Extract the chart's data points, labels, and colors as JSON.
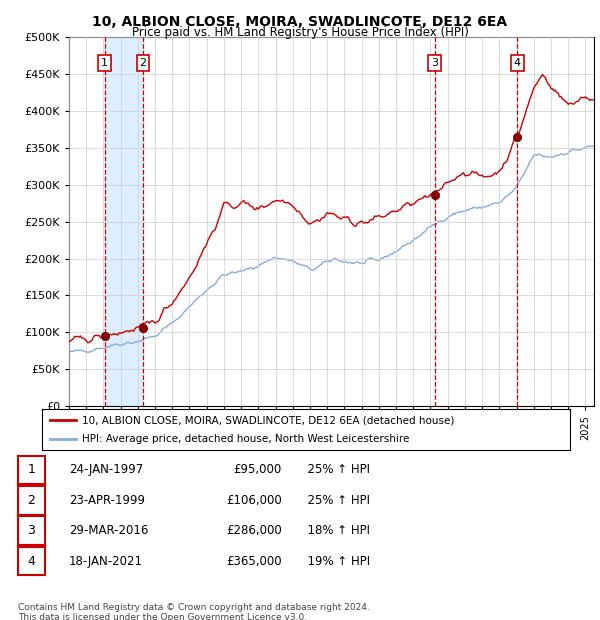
{
  "title": "10, ALBION CLOSE, MOIRA, SWADLINCOTE, DE12 6EA",
  "subtitle": "Price paid vs. HM Land Registry's House Price Index (HPI)",
  "legend_property": "10, ALBION CLOSE, MOIRA, SWADLINCOTE, DE12 6EA (detached house)",
  "legend_hpi": "HPI: Average price, detached house, North West Leicestershire",
  "footer": "Contains HM Land Registry data © Crown copyright and database right 2024.\nThis data is licensed under the Open Government Licence v3.0.",
  "purchases": [
    {
      "num": 1,
      "date": "24-JAN-1997",
      "price": 95000,
      "hpi_pct": 25,
      "hpi_dir": "↑"
    },
    {
      "num": 2,
      "date": "23-APR-1999",
      "price": 106000,
      "hpi_pct": 25,
      "hpi_dir": "↑"
    },
    {
      "num": 3,
      "date": "29-MAR-2016",
      "price": 286000,
      "hpi_pct": 18,
      "hpi_dir": "↑"
    },
    {
      "num": 4,
      "date": "18-JAN-2021",
      "price": 365000,
      "hpi_pct": 19,
      "hpi_dir": "↑"
    }
  ],
  "purchase_dates_decimal": [
    1997.065,
    1999.308,
    2016.242,
    2021.046
  ],
  "purchase_prices": [
    95000,
    106000,
    286000,
    365000
  ],
  "ylim": [
    0,
    500000
  ],
  "yticks": [
    0,
    50000,
    100000,
    150000,
    200000,
    250000,
    300000,
    350000,
    400000,
    450000,
    500000
  ],
  "xlim_start": 1995.0,
  "xlim_end": 2025.5,
  "property_color": "#cc0000",
  "hpi_color": "#88aadd",
  "vline_color": "#cc0000",
  "shade_color": "#ddeeff",
  "background_color": "#ffffff",
  "grid_color": "#cccccc"
}
